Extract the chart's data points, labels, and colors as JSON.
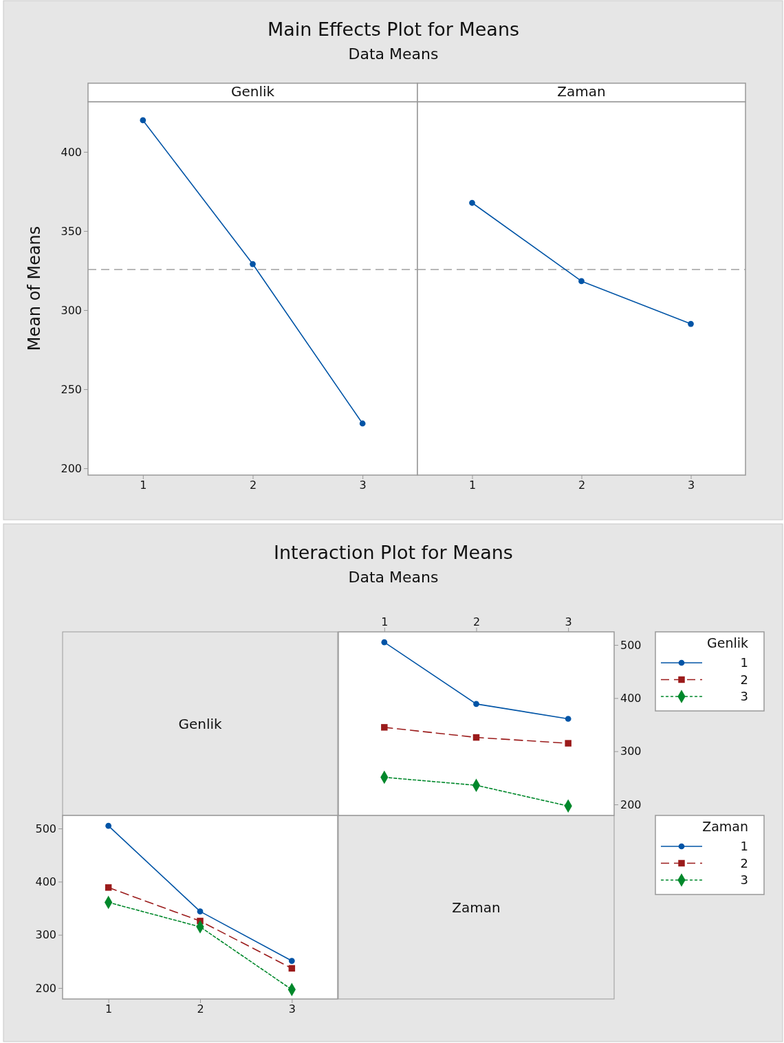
{
  "chart_data": [
    {
      "type": "line",
      "title": "Main Effects Plot for Means",
      "subtitle": "Data Means",
      "xlabel": "Genlik",
      "ylabel": "Mean of Means",
      "xlim": [
        0.5,
        3.5
      ],
      "xticks": [
        1,
        2,
        3
      ],
      "ylim": [
        195.7,
        431.7
      ],
      "yticks": [
        200,
        250,
        300,
        350,
        400
      ],
      "series": [
        {
          "color": "#0054a6",
          "x": [
            1,
            2,
            3
          ],
          "values": [
            420,
            329.1,
            228.3
          ],
          "marker": "circle",
          "line_style": "solid"
        }
      ],
      "ref_lines": [
        {
          "axis": "y",
          "value": 325.7,
          "color": "#a0a0a0",
          "line_style": "dashed"
        }
      ],
      "grid": false,
      "legend": false
    },
    {
      "type": "line",
      "xlabel": "Zaman",
      "xlim": [
        0.5,
        3.5
      ],
      "xticks": [
        1,
        2,
        3
      ],
      "ylim": [
        195.7,
        431.7
      ],
      "tick_labels": "x",
      "series": [
        {
          "color": "#0054a6",
          "x": [
            1,
            2,
            3
          ],
          "values": [
            367.8,
            318.3,
            291.3
          ],
          "marker": "circle",
          "line_style": "solid"
        }
      ],
      "ref_lines": [
        {
          "axis": "y",
          "value": 325.7,
          "color": "#a0a0a0",
          "line_style": "dashed"
        }
      ],
      "grid": false,
      "legend": false
    },
    {
      "type": "line",
      "title": "Interaction Plot for Means",
      "subtitle": "Data Means",
      "xlabel": "Zaman",
      "legend_title": "Genlik",
      "legend": "right",
      "xlim": [
        0.5,
        3.5
      ],
      "xticks": [
        1,
        2,
        3
      ],
      "ylim": [
        179.3,
        524.6
      ],
      "yticks": [
        200,
        300,
        400,
        500
      ],
      "grid": false,
      "series": [
        {
          "name": "1",
          "color": "#0054a6",
          "x": [
            1,
            2,
            3
          ],
          "values": [
            505,
            389,
            361
          ],
          "marker": "circle",
          "line_style": "solid"
        },
        {
          "name": "2",
          "color": "#9b1b1b",
          "x": [
            1,
            2,
            3
          ],
          "values": [
            345,
            326,
            315
          ],
          "marker": "square",
          "line_style": "dashed"
        },
        {
          "name": "3",
          "color": "#00882b",
          "x": [
            1,
            2,
            3
          ],
          "values": [
            251,
            236,
            197
          ],
          "marker": "diamond",
          "line_style": "dotted"
        }
      ]
    },
    {
      "type": "line",
      "xlabel": "Genlik",
      "legend_title": "Zaman",
      "legend": "right",
      "xlim": [
        0.5,
        3.5
      ],
      "xticks": [
        1,
        2,
        3
      ],
      "ylim": [
        179.3,
        524.6
      ],
      "yticks": [
        200,
        300,
        400,
        500
      ],
      "grid": false,
      "series": [
        {
          "name": "1",
          "color": "#0054a6",
          "x": [
            1,
            2,
            3
          ],
          "values": [
            505,
            344,
            251
          ],
          "marker": "circle",
          "line_style": "solid"
        },
        {
          "name": "2",
          "color": "#9b1b1b",
          "x": [
            1,
            2,
            3
          ],
          "values": [
            389,
            326,
            237
          ],
          "marker": "square",
          "line_style": "dashed"
        },
        {
          "name": "3",
          "color": "#00882b",
          "x": [
            1,
            2,
            3
          ],
          "values": [
            361,
            315,
            197
          ],
          "marker": "diamond",
          "line_style": "dotted"
        }
      ]
    }
  ]
}
